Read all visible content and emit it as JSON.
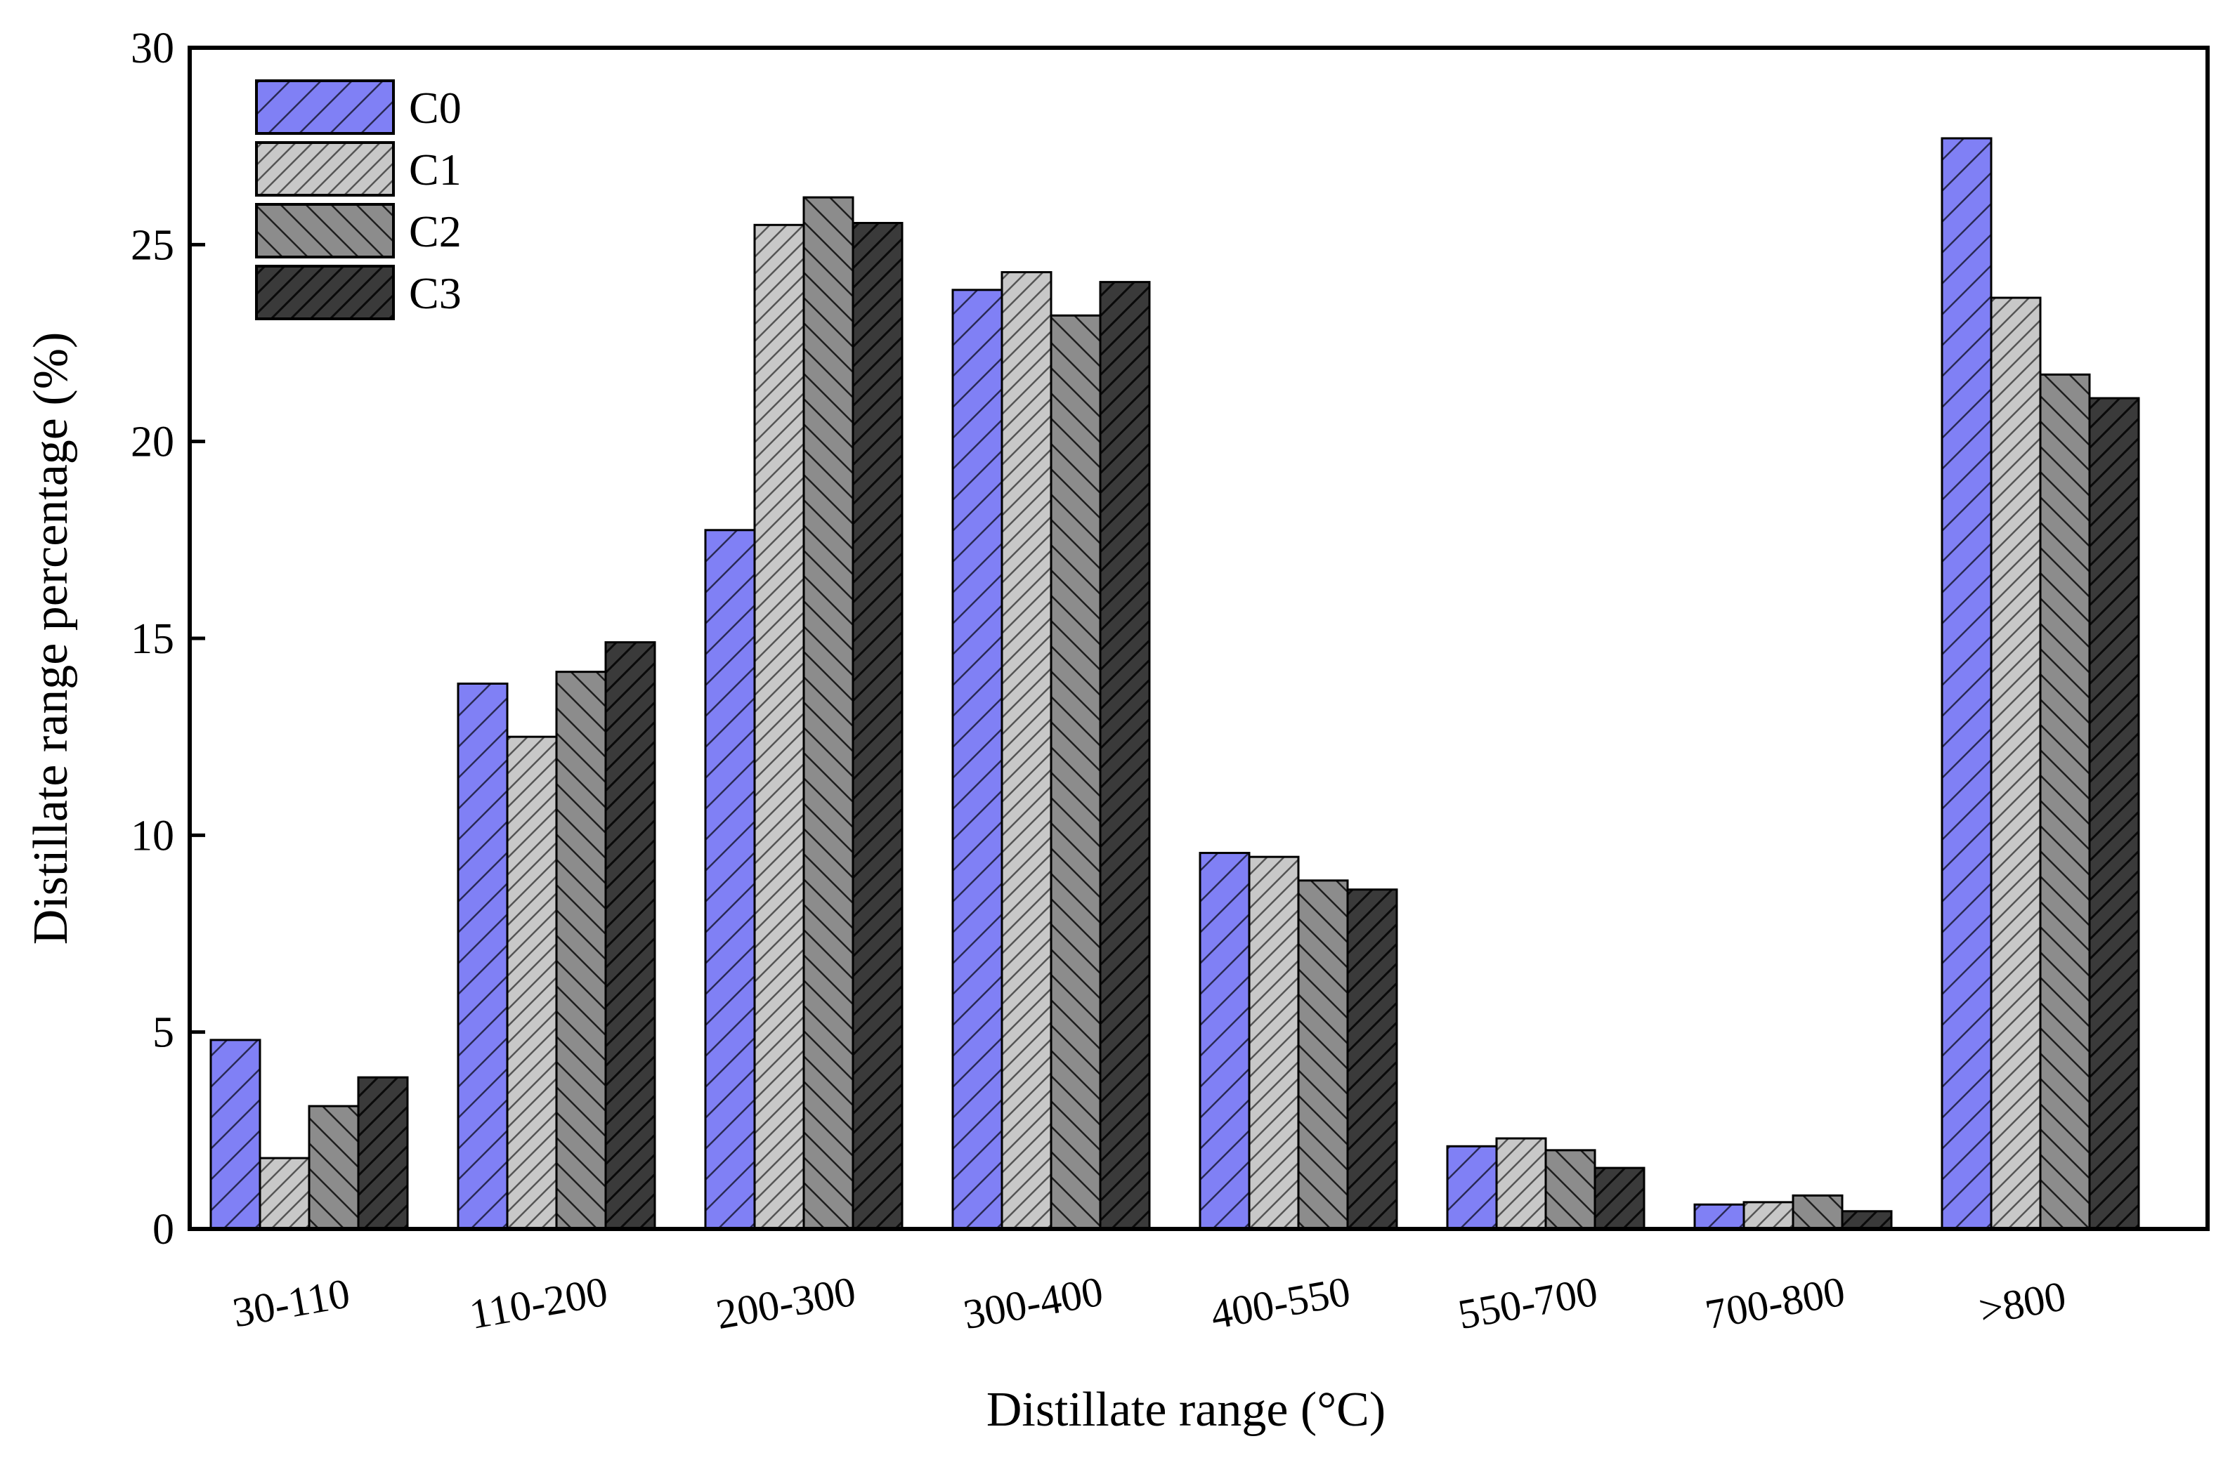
{
  "chart_data": {
    "type": "bar",
    "title": "",
    "xlabel": "Distillate range (°C)",
    "ylabel": "Distillate range percentage (%)",
    "ylim": [
      0,
      30
    ],
    "yticks": [
      0,
      5,
      10,
      15,
      20,
      25,
      30
    ],
    "grid": false,
    "legend_position": "top-left",
    "categories": [
      "30-110",
      "110-200",
      "200-300",
      "300-400",
      "400-550",
      "550-700",
      "700-800",
      ">800"
    ],
    "series": [
      {
        "name": "C0",
        "color": "#8080f5",
        "pattern": "forward-hatch",
        "values": [
          4.8,
          13.85,
          17.75,
          23.85,
          9.55,
          2.1,
          0.62,
          27.7
        ]
      },
      {
        "name": "C1",
        "color": "#c8c8c8",
        "pattern": "dense-forward-hatch",
        "values": [
          1.8,
          12.5,
          25.5,
          24.3,
          9.45,
          2.3,
          0.68,
          23.65
        ]
      },
      {
        "name": "C2",
        "color": "#8c8c8c",
        "pattern": "back-hatch",
        "values": [
          3.12,
          14.15,
          26.2,
          23.2,
          8.85,
          2.0,
          0.85,
          21.7
        ]
      },
      {
        "name": "C3",
        "color": "#3a3a3a",
        "pattern": "dark-forward-hatch",
        "values": [
          3.85,
          14.9,
          25.55,
          24.05,
          8.62,
          1.55,
          0.45,
          21.1
        ]
      }
    ]
  }
}
